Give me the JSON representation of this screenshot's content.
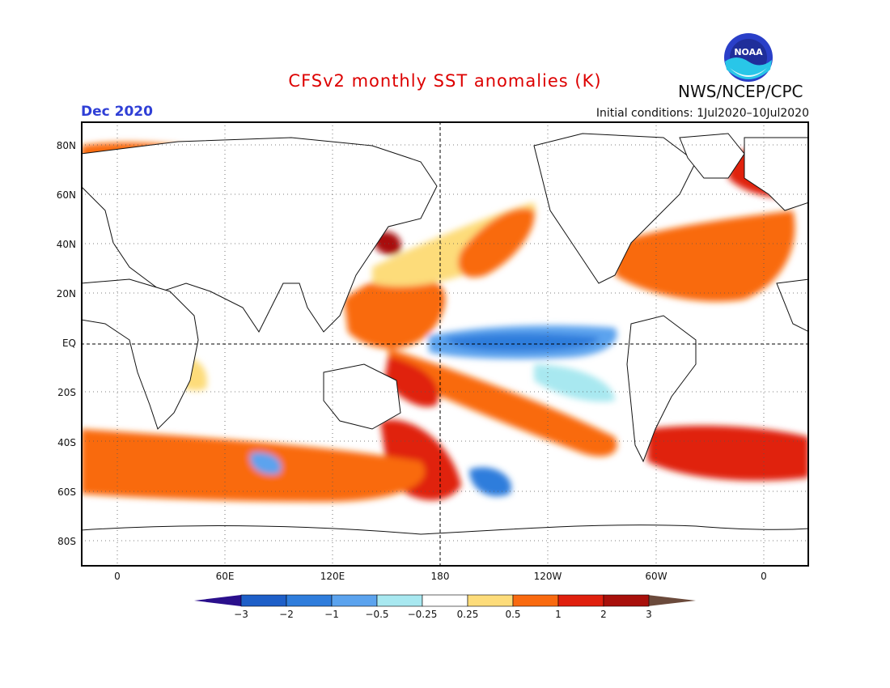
{
  "header": {
    "title": "CFSv2 monthly SST anomalies (K)",
    "title_color": "#dd0000",
    "organization": "NWS/NCEP/CPC",
    "valid_month": "Dec 2020",
    "valid_month_color": "#2f3fd6",
    "initial_conditions": "Initial conditions: 1Jul2020–10Jul2020"
  },
  "logo": {
    "icon": "noaa-logo",
    "text": "NOAA"
  },
  "map": {
    "lat_labels": [
      "80N",
      "60N",
      "40N",
      "20N",
      "EQ",
      "20S",
      "40S",
      "60S",
      "80S"
    ],
    "lon_labels": [
      "0",
      "60E",
      "120E",
      "180",
      "120W",
      "60W",
      "0"
    ],
    "dashed_reference_lines": [
      "EQ",
      "180"
    ]
  },
  "colorbar": {
    "levels": [
      "−3",
      "−2",
      "−1",
      "−0.5",
      "−0.25",
      "0.25",
      "0.5",
      "1",
      "2",
      "3"
    ],
    "low_extension_color": "#2a0f8c",
    "high_extension_color": "#6b4a3b",
    "colors": [
      "#1e5fc8",
      "#2f7ddc",
      "#5ba3ee",
      "#a8e8f0",
      "#ffffff",
      "#fddc7a",
      "#f96a10",
      "#e0200e",
      "#a8100b"
    ]
  }
}
